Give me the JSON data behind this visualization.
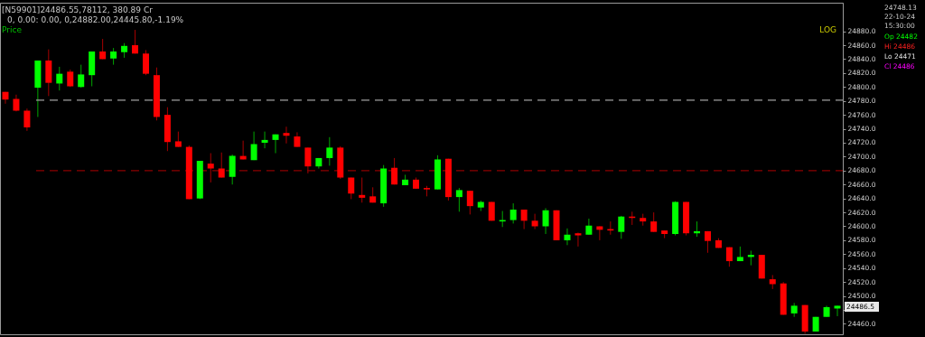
{
  "chart_data": {
    "type": "candlestick",
    "categories": [
      null,
      null,
      null,
      null,
      null,
      null,
      null,
      null,
      null,
      null,
      null,
      null,
      null,
      null,
      null,
      null,
      null,
      null,
      null,
      null,
      null,
      null,
      null,
      null,
      null,
      null,
      null,
      null,
      null,
      null,
      null,
      null,
      null,
      null,
      null,
      null,
      null,
      null,
      null,
      null,
      null,
      null,
      null,
      null,
      null,
      null,
      null,
      null,
      null,
      null,
      null,
      null,
      null,
      null,
      null,
      null,
      null,
      null,
      null,
      null,
      null,
      null,
      null,
      null,
      null,
      null,
      null,
      null,
      null,
      null,
      null,
      null,
      null,
      null,
      null,
      null,
      null,
      null
    ],
    "ohlc": [
      [
        24793,
        24793,
        24776,
        24782
      ],
      [
        24783,
        24789,
        24765,
        24766
      ],
      [
        24766,
        24769,
        24737,
        24742
      ],
      [
        24799,
        24838,
        24757,
        24838
      ],
      [
        24838,
        24854,
        24787,
        24806
      ],
      [
        24805,
        24829,
        24795,
        24819
      ],
      [
        24822,
        24825,
        24800,
        24801
      ],
      [
        24800,
        24832,
        24799,
        24818
      ],
      [
        24817,
        24851,
        24801,
        24851
      ],
      [
        24851,
        24869,
        24840,
        24840
      ],
      [
        24841,
        24856,
        24832,
        24851
      ],
      [
        24850,
        24863,
        24842,
        24859
      ],
      [
        24860,
        24882,
        24848,
        24848
      ],
      [
        24848,
        24853,
        24817,
        24819
      ],
      [
        24817,
        24828,
        24752,
        24757
      ],
      [
        24760,
        24771,
        24708,
        24721
      ],
      [
        24722,
        24736,
        24714,
        24714
      ],
      [
        24714,
        24716,
        24639,
        24639
      ],
      [
        24640,
        24694,
        24639,
        24694
      ],
      [
        24690,
        24705,
        24663,
        24683
      ],
      [
        24683,
        24706,
        24670,
        24670
      ],
      [
        24671,
        24703,
        24660,
        24701
      ],
      [
        24701,
        24723,
        24696,
        24696
      ],
      [
        24695,
        24736,
        24695,
        24718
      ],
      [
        24720,
        24736,
        24712,
        24724
      ],
      [
        24724,
        24732,
        24705,
        24732
      ],
      [
        24734,
        24743,
        24719,
        24730
      ],
      [
        24729,
        24735,
        24714,
        24714
      ],
      [
        24713,
        24713,
        24676,
        24686
      ],
      [
        24686,
        24698,
        24683,
        24698
      ],
      [
        24698,
        24728,
        24687,
        24713
      ],
      [
        24713,
        24715,
        24668,
        24670
      ],
      [
        24670,
        24670,
        24639,
        24647
      ],
      [
        24645,
        24670,
        24634,
        24641
      ],
      [
        24643,
        24656,
        24634,
        24634
      ],
      [
        24633,
        24688,
        24628,
        24683
      ],
      [
        24684,
        24698,
        24660,
        24660
      ],
      [
        24659,
        24674,
        24659,
        24667
      ],
      [
        24667,
        24670,
        24654,
        24654
      ],
      [
        24655,
        24658,
        24643,
        24653
      ],
      [
        24653,
        24702,
        24653,
        24696
      ],
      [
        24697,
        24697,
        24637,
        24642
      ],
      [
        24642,
        24655,
        24621,
        24652
      ],
      [
        24651,
        24651,
        24617,
        24629
      ],
      [
        24627,
        24637,
        24622,
        24635
      ],
      [
        24635,
        24635,
        24608,
        24608
      ],
      [
        24607,
        24622,
        24599,
        24609
      ],
      [
        24609,
        24633,
        24604,
        24624
      ],
      [
        24624,
        24624,
        24596,
        24608
      ],
      [
        24608,
        24618,
        24596,
        24600
      ],
      [
        24600,
        24626,
        24589,
        24623
      ],
      [
        24623,
        24623,
        24580,
        24580
      ],
      [
        24580,
        24597,
        24573,
        24588
      ],
      [
        24590,
        24591,
        24571,
        24587
      ],
      [
        24588,
        24611,
        24588,
        24601
      ],
      [
        24600,
        24600,
        24580,
        24595
      ],
      [
        24596,
        24607,
        24588,
        24594
      ],
      [
        24592,
        24615,
        24582,
        24614
      ],
      [
        24614,
        24621,
        24602,
        24612
      ],
      [
        24612,
        24618,
        24601,
        24607
      ],
      [
        24607,
        24620,
        24592,
        24592
      ],
      [
        24594,
        24594,
        24583,
        24589
      ],
      [
        24589,
        24636,
        24587,
        24635
      ],
      [
        24635,
        24635,
        24587,
        24590
      ],
      [
        24590,
        24607,
        24585,
        24593
      ],
      [
        24593,
        24593,
        24562,
        24579
      ],
      [
        24580,
        24583,
        24569,
        24569
      ],
      [
        24570,
        24570,
        24542,
        24550
      ],
      [
        24550,
        24571,
        24550,
        24556
      ],
      [
        24556,
        24565,
        24544,
        24559
      ],
      [
        24559,
        24559,
        24525,
        24525
      ],
      [
        24524,
        24530,
        24510,
        24517
      ],
      [
        24518,
        24520,
        24473,
        24473
      ],
      [
        24475,
        24490,
        24470,
        24486
      ],
      [
        24487,
        24487,
        24445.8,
        24449
      ],
      [
        24449,
        24470,
        24449,
        24470
      ],
      [
        24470,
        24486,
        24470,
        24484
      ],
      [
        24482,
        24486,
        24471,
        24486
      ]
    ],
    "colors": [
      "#ff0000",
      "#ff0000",
      "#ff0000",
      "#00ff00",
      "#ff0000",
      "#00ff00",
      "#ff0000",
      "#00ff00",
      "#00ff00",
      "#ff0000",
      "#00ff00",
      "#00ff00",
      "#ff0000",
      "#ff0000",
      "#ff0000",
      "#ff0000",
      "#ff0000",
      "#ff0000",
      "#00ff00",
      "#ff0000",
      "#ff0000",
      "#00ff00",
      "#ff0000",
      "#00ff00",
      "#00ff00",
      "#00ff00",
      "#ff0000",
      "#ff0000",
      "#ff0000",
      "#00ff00",
      "#00ff00",
      "#ff0000",
      "#ff0000",
      "#ff0000",
      "#ff0000",
      "#00ff00",
      "#ff0000",
      "#00ff00",
      "#ff0000",
      "#ff0000",
      "#00ff00",
      "#ff0000",
      "#00ff00",
      "#ff0000",
      "#00ff00",
      "#ff0000",
      "#00ff00",
      "#00ff00",
      "#ff0000",
      "#ff0000",
      "#00ff00",
      "#ff0000",
      "#00ff00",
      "#ff0000",
      "#00ff00",
      "#ff0000",
      "#ff0000",
      "#00ff00",
      "#ff0000",
      "#ff0000",
      "#ff0000",
      "#ff0000",
      "#00ff00",
      "#ff0000",
      "#00ff00",
      "#ff0000",
      "#ff0000",
      "#ff0000",
      "#00ff00",
      "#00ff00",
      "#ff0000",
      "#ff0000",
      "#ff0000",
      "#00ff00",
      "#ff0000",
      "#00ff00",
      "#00ff00",
      "#00ff00"
    ],
    "ylim": [
      24445,
      24921
    ],
    "yticks": [
      {
        "value": 24880,
        "label": "24880.0"
      },
      {
        "value": 24860,
        "label": "24860.0"
      },
      {
        "value": 24840,
        "label": "24840.0"
      },
      {
        "value": 24820,
        "label": "24820.0"
      },
      {
        "value": 24800,
        "label": "24800.0"
      },
      {
        "value": 24780,
        "label": "24780.0"
      },
      {
        "value": 24760,
        "label": "24760.0"
      },
      {
        "value": 24740,
        "label": "24740.0"
      },
      {
        "value": 24720,
        "label": "24720.0"
      },
      {
        "value": 24700,
        "label": "24700.0"
      },
      {
        "value": 24680,
        "label": "24680.0"
      },
      {
        "value": 24660,
        "label": "24660.0"
      },
      {
        "value": 24640,
        "label": "24640.0"
      },
      {
        "value": 24620,
        "label": "24620.0"
      },
      {
        "value": 24600,
        "label": "24600.0"
      },
      {
        "value": 24580,
        "label": "24580.0"
      },
      {
        "value": 24560,
        "label": "24560.0"
      },
      {
        "value": 24540,
        "label": "24540.0"
      },
      {
        "value": 24520,
        "label": "24520.0"
      },
      {
        "value": 24500,
        "label": "24500.0"
      },
      {
        "value": 24480,
        "label": null
      },
      {
        "value": 24460,
        "label": "24460.0"
      }
    ],
    "tick_labels": "y",
    "grid": false,
    "ref_lines": [
      {
        "axis": "y",
        "value": 24781,
        "color": "#a0a0a0",
        "line_style": "dashed"
      },
      {
        "axis": "y",
        "value": 24680,
        "color": "#8b0000",
        "line_style": "dashed"
      }
    ],
    "annotations": [
      "[N59901]24486.55,78112,  380.89  Cr",
      "0,  0.00:  0.00,  0,24882.00,24445.80,-1.19%",
      "Price",
      "LOG",
      "24748.13",
      "22-10-24",
      "15:30:00",
      "Op 24482",
      "Hi 24486",
      "Lo 24471",
      "Cl 24486",
      "24486.5"
    ]
  }
}
